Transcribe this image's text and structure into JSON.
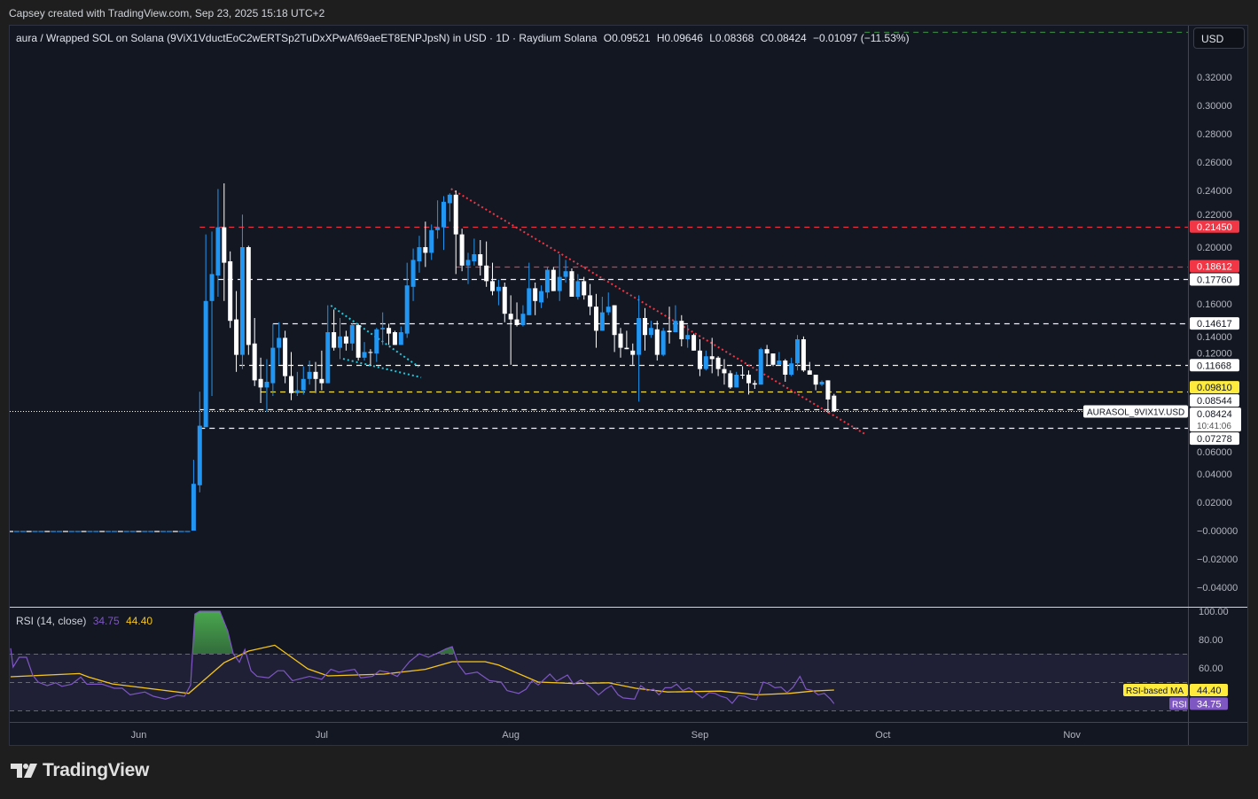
{
  "credit": "Capsey created with TradingView.com, Sep 23, 2025 15:18 UTC+2",
  "legend": {
    "symbol": "aura / Wrapped SOL on Solana (9ViX1VductEoC2wERTSp2TuDxXPwAf69aeET8ENPJpsN) in USD · 1D · Raydium Solana",
    "open": "O0.09521",
    "high": "H0.09646",
    "low": "L0.08368",
    "close": "C0.08424",
    "change": "−0.01097 (−11.53%)"
  },
  "currency_button": "USD",
  "rsi_legend": {
    "title": "RSI (14, close)",
    "rsi_value": "34.75",
    "ma_value": "44.40"
  },
  "rsi_labels": {
    "ma_name": "RSI-based MA",
    "ma_value": "44.40",
    "rsi_name": "RSI",
    "rsi_value": "34.75"
  },
  "symbol_tag": "AURASOL_9VIX1V.USD",
  "countdown": "10:41:06",
  "logo_text": "TradingView",
  "colors": {
    "up": "#2196f3",
    "down": "#ffffff",
    "red": "#f23645",
    "yellow": "#ffeb3b",
    "rsi": "#7e57c2",
    "ma": "#f5c518",
    "cyan": "#26c6da",
    "green": "#4caf50"
  },
  "chart_data": {
    "type": "candlestick",
    "interval": "1D",
    "ylim": [
      -0.05,
      0.36
    ],
    "price_ticks": [
      "0.32000",
      "0.30000",
      "0.28000",
      "0.26000",
      "0.24000",
      "0.22000",
      "0.20000",
      "0.16000",
      "0.14000",
      "0.12000",
      "0.06000",
      "0.04000",
      "0.02000",
      "−0.00000",
      "−0.02000",
      "−0.04000"
    ],
    "time_axis": [
      {
        "label": "Jun",
        "day": 21
      },
      {
        "label": "Jul",
        "day": 51
      },
      {
        "label": "Aug",
        "day": 82
      },
      {
        "label": "Sep",
        "day": 113
      },
      {
        "label": "Oct",
        "day": 143
      },
      {
        "label": "Nov",
        "day": 174
      }
    ],
    "flat_prefix": {
      "days": 30,
      "price": 0.0
    },
    "candles_ohlc": [
      [
        0.0,
        0.05,
        0.0,
        0.033
      ],
      [
        0.032,
        0.098,
        0.027,
        0.074
      ],
      [
        0.073,
        0.209,
        0.073,
        0.162
      ],
      [
        0.162,
        0.211,
        0.095,
        0.181
      ],
      [
        0.18,
        0.241,
        0.165,
        0.214
      ],
      [
        0.214,
        0.245,
        0.162,
        0.189
      ],
      [
        0.19,
        0.197,
        0.143,
        0.148
      ],
      [
        0.149,
        0.169,
        0.112,
        0.124
      ],
      [
        0.124,
        0.223,
        0.114,
        0.2
      ],
      [
        0.2,
        0.201,
        0.124,
        0.131
      ],
      [
        0.132,
        0.15,
        0.102,
        0.106
      ],
      [
        0.107,
        0.122,
        0.09,
        0.101
      ],
      [
        0.101,
        0.121,
        0.084,
        0.105
      ],
      [
        0.104,
        0.146,
        0.095,
        0.129
      ],
      [
        0.129,
        0.147,
        0.117,
        0.136
      ],
      [
        0.136,
        0.141,
        0.104,
        0.109
      ],
      [
        0.109,
        0.126,
        0.092,
        0.097
      ],
      [
        0.097,
        0.112,
        0.095,
        0.099
      ],
      [
        0.099,
        0.116,
        0.096,
        0.107
      ],
      [
        0.107,
        0.12,
        0.103,
        0.112
      ],
      [
        0.112,
        0.119,
        0.097,
        0.107
      ],
      [
        0.107,
        0.127,
        0.099,
        0.104
      ],
      [
        0.104,
        0.159,
        0.104,
        0.14
      ],
      [
        0.14,
        0.156,
        0.127,
        0.129
      ],
      [
        0.129,
        0.15,
        0.121,
        0.137
      ],
      [
        0.137,
        0.141,
        0.127,
        0.132
      ],
      [
        0.132,
        0.146,
        0.127,
        0.145
      ],
      [
        0.145,
        0.146,
        0.12,
        0.122
      ],
      [
        0.122,
        0.133,
        0.12,
        0.126
      ],
      [
        0.126,
        0.128,
        0.117,
        0.1255
      ],
      [
        0.125,
        0.143,
        0.119,
        0.142
      ],
      [
        0.142,
        0.154,
        0.131,
        0.143
      ],
      [
        0.143,
        0.146,
        0.131,
        0.139
      ],
      [
        0.14,
        0.141,
        0.131,
        0.131
      ],
      [
        0.131,
        0.144,
        0.131,
        0.14
      ],
      [
        0.139,
        0.189,
        0.136,
        0.173
      ],
      [
        0.172,
        0.199,
        0.162,
        0.191
      ],
      [
        0.19,
        0.208,
        0.182,
        0.2
      ],
      [
        0.2,
        0.218,
        0.186,
        0.196
      ],
      [
        0.196,
        0.216,
        0.191,
        0.212
      ],
      [
        0.212,
        0.233,
        0.206,
        0.214
      ],
      [
        0.214,
        0.236,
        0.198,
        0.232
      ],
      [
        0.231,
        0.238,
        0.218,
        0.237
      ],
      [
        0.237,
        0.24,
        0.181,
        0.209
      ],
      [
        0.209,
        0.213,
        0.183,
        0.187
      ],
      [
        0.187,
        0.196,
        0.174,
        0.191
      ],
      [
        0.19,
        0.206,
        0.187,
        0.195
      ],
      [
        0.195,
        0.205,
        0.18,
        0.187
      ],
      [
        0.187,
        0.204,
        0.172,
        0.176
      ],
      [
        0.176,
        0.189,
        0.166,
        0.169
      ],
      [
        0.169,
        0.177,
        0.159,
        0.172
      ],
      [
        0.172,
        0.175,
        0.147,
        0.153
      ],
      [
        0.153,
        0.166,
        0.117,
        0.149
      ],
      [
        0.149,
        0.161,
        0.144,
        0.145
      ],
      [
        0.145,
        0.159,
        0.144,
        0.153
      ],
      [
        0.152,
        0.189,
        0.152,
        0.171
      ],
      [
        0.171,
        0.175,
        0.152,
        0.162
      ],
      [
        0.161,
        0.173,
        0.157,
        0.169
      ],
      [
        0.168,
        0.186,
        0.164,
        0.184
      ],
      [
        0.184,
        0.186,
        0.169,
        0.169
      ],
      [
        0.169,
        0.195,
        0.162,
        0.179
      ],
      [
        0.179,
        0.191,
        0.175,
        0.183
      ],
      [
        0.183,
        0.185,
        0.165,
        0.165
      ],
      [
        0.165,
        0.181,
        0.163,
        0.176
      ],
      [
        0.176,
        0.179,
        0.163,
        0.166
      ],
      [
        0.166,
        0.174,
        0.152,
        0.158
      ],
      [
        0.158,
        0.167,
        0.129,
        0.141
      ],
      [
        0.141,
        0.165,
        0.141,
        0.154
      ],
      [
        0.154,
        0.168,
        0.152,
        0.158
      ],
      [
        0.159,
        0.159,
        0.126,
        0.138
      ],
      [
        0.139,
        0.143,
        0.122,
        0.129
      ],
      [
        0.129,
        0.141,
        0.128,
        0.128
      ],
      [
        0.127,
        0.132,
        0.117,
        0.124
      ],
      [
        0.124,
        0.166,
        0.091,
        0.15
      ],
      [
        0.15,
        0.157,
        0.127,
        0.138
      ],
      [
        0.138,
        0.148,
        0.136,
        0.143
      ],
      [
        0.142,
        0.148,
        0.12,
        0.124
      ],
      [
        0.124,
        0.143,
        0.123,
        0.141
      ],
      [
        0.141,
        0.158,
        0.132,
        0.14
      ],
      [
        0.14,
        0.159,
        0.14,
        0.148
      ],
      [
        0.148,
        0.152,
        0.13,
        0.135
      ],
      [
        0.135,
        0.145,
        0.129,
        0.138
      ],
      [
        0.138,
        0.139,
        0.127,
        0.127
      ],
      [
        0.127,
        0.135,
        0.109,
        0.114
      ],
      [
        0.114,
        0.127,
        0.113,
        0.123
      ],
      [
        0.123,
        0.136,
        0.111,
        0.121
      ],
      [
        0.122,
        0.123,
        0.109,
        0.114
      ],
      [
        0.114,
        0.121,
        0.103,
        0.111
      ],
      [
        0.111,
        0.113,
        0.1,
        0.101
      ],
      [
        0.101,
        0.112,
        0.101,
        0.11
      ],
      [
        0.11,
        0.116,
        0.107,
        0.1095
      ],
      [
        0.11,
        0.113,
        0.096,
        0.104
      ],
      [
        0.104,
        0.106,
        0.1,
        0.103
      ],
      [
        0.103,
        0.129,
        0.103,
        0.128
      ],
      [
        0.128,
        0.131,
        0.116,
        0.125
      ],
      [
        0.125,
        0.125,
        0.116,
        0.117
      ],
      [
        0.117,
        0.126,
        0.117,
        0.12
      ],
      [
        0.12,
        0.121,
        0.105,
        0.11
      ],
      [
        0.11,
        0.122,
        0.109,
        0.118
      ],
      [
        0.118,
        0.138,
        0.113,
        0.135
      ],
      [
        0.135,
        0.137,
        0.112,
        0.113
      ],
      [
        0.113,
        0.119,
        0.11,
        0.11
      ],
      [
        0.11,
        0.11,
        0.099,
        0.103
      ],
      [
        0.103,
        0.106,
        0.102,
        0.105
      ],
      [
        0.106,
        0.106,
        0.083,
        0.0925
      ],
      [
        0.09521,
        0.09646,
        0.08368,
        0.08424
      ]
    ],
    "levels": [
      {
        "price": 0.2145,
        "label": "0.21450",
        "color": "red",
        "start_day": 31
      },
      {
        "price": 0.18612,
        "label": "0.18612",
        "color": "red",
        "start_day": 73
      },
      {
        "price": 0.1776,
        "label": "0.17760",
        "color": "white",
        "start_day": 34
      },
      {
        "price": 0.14617,
        "label": "0.14617",
        "color": "white",
        "start_day": 43
      },
      {
        "price": 0.11668,
        "label": "0.11668",
        "color": "white",
        "start_day": 37.5
      },
      {
        "price": 0.0981,
        "label": "0.09810",
        "color": "yellow",
        "start_day": 41
      },
      {
        "price": 0.08544,
        "label": "0.08544",
        "color": "white",
        "start_day": 31
      },
      {
        "price": 0.07278,
        "label": "0.07278",
        "color": "white",
        "start_day": 31
      },
      {
        "price": 0.3519,
        "label": "",
        "color": "green",
        "start_day": 140
      }
    ],
    "last_price": {
      "price": 0.08424,
      "label": "0.08424"
    },
    "trendlines": [
      {
        "color": "red",
        "from": [
          72.2,
          0.2412
        ],
        "to": [
          140,
          0.0683
        ]
      },
      {
        "color": "cyan",
        "from": [
          52.5,
          0.1588
        ],
        "to": [
          66.9,
          0.1156
        ]
      },
      {
        "color": "cyan",
        "from": [
          54.5,
          0.1212
        ],
        "to": [
          67.3,
          0.1081
        ]
      }
    ],
    "rsi": {
      "ylim": [
        0,
        100
      ],
      "ticks": [
        "100.00",
        "80.00",
        "60.00"
      ],
      "bands": [
        70,
        50,
        30
      ],
      "rsi_points": [
        [
          0,
          73.9
        ],
        [
          0.4,
          60.6
        ],
        [
          1.4,
          67.5
        ],
        [
          2.6,
          67.5
        ],
        [
          3.6,
          55
        ],
        [
          4.5,
          50
        ],
        [
          6,
          47.5
        ],
        [
          7.4,
          49.5
        ],
        [
          8.4,
          47
        ],
        [
          10,
          48.5
        ],
        [
          11.5,
          53.5
        ],
        [
          12.5,
          48.5
        ],
        [
          15,
          48.5
        ],
        [
          17,
          45.6
        ],
        [
          18.3,
          45.6
        ],
        [
          19.6,
          41
        ],
        [
          22,
          43
        ],
        [
          23.4,
          40
        ],
        [
          25.4,
          38
        ],
        [
          27.3,
          40.6
        ],
        [
          28.5,
          40
        ],
        [
          29.5,
          48
        ],
        [
          30.2,
          98
        ],
        [
          31,
          100
        ],
        [
          34.3,
          100
        ],
        [
          35.6,
          86
        ],
        [
          36.5,
          70
        ],
        [
          37.5,
          64
        ],
        [
          38.4,
          73
        ],
        [
          39.4,
          58
        ],
        [
          40.4,
          54
        ],
        [
          42.3,
          53
        ],
        [
          43.8,
          58
        ],
        [
          44.8,
          58
        ],
        [
          46.2,
          51
        ],
        [
          49,
          54
        ],
        [
          51,
          52
        ],
        [
          52.5,
          59
        ],
        [
          53.8,
          57
        ],
        [
          55,
          58
        ],
        [
          56.4,
          59
        ],
        [
          57.4,
          53
        ],
        [
          59.3,
          54
        ],
        [
          60.5,
          58
        ],
        [
          61.8,
          57
        ],
        [
          63.4,
          54
        ],
        [
          65.4,
          64.5
        ],
        [
          67,
          70
        ],
        [
          68.5,
          67.5
        ],
        [
          70,
          70.5
        ],
        [
          71.4,
          73.5
        ],
        [
          72.4,
          75
        ],
        [
          73.4,
          62.5
        ],
        [
          74.6,
          55.6
        ],
        [
          76.5,
          57
        ],
        [
          78.5,
          51
        ],
        [
          80.4,
          50
        ],
        [
          81.4,
          44
        ],
        [
          83.3,
          42
        ],
        [
          84.5,
          45
        ],
        [
          85.5,
          51
        ],
        [
          86.5,
          48
        ],
        [
          88.4,
          55.6
        ],
        [
          89.5,
          50.6
        ],
        [
          91.3,
          55
        ],
        [
          92.3,
          48.5
        ],
        [
          93.5,
          51.5
        ],
        [
          95.2,
          46
        ],
        [
          96.4,
          41
        ],
        [
          97.5,
          45
        ],
        [
          98.5,
          47.5
        ],
        [
          99.6,
          41
        ],
        [
          100.4,
          38.8
        ],
        [
          102.3,
          38
        ],
        [
          103.3,
          47.5
        ],
        [
          104.4,
          44
        ],
        [
          105.4,
          45
        ],
        [
          106.3,
          41
        ],
        [
          107.3,
          46
        ],
        [
          108.3,
          46
        ],
        [
          109.2,
          48.5
        ],
        [
          110.2,
          44
        ],
        [
          111.2,
          46
        ],
        [
          113.4,
          38.8
        ],
        [
          114.5,
          42.5
        ],
        [
          115.5,
          42
        ],
        [
          116.4,
          40
        ],
        [
          117.4,
          38.8
        ],
        [
          118.3,
          35
        ],
        [
          119.3,
          40.5
        ],
        [
          120.3,
          40
        ],
        [
          121.4,
          38
        ],
        [
          122.3,
          37.6
        ],
        [
          123.4,
          50
        ],
        [
          124.3,
          48.7
        ],
        [
          125.3,
          46
        ],
        [
          126.3,
          46.5
        ],
        [
          127.3,
          42.5
        ],
        [
          128.3,
          46.5
        ],
        [
          129.4,
          54
        ],
        [
          130.4,
          45
        ],
        [
          131.5,
          44
        ],
        [
          132.4,
          41
        ],
        [
          133.4,
          42
        ],
        [
          134.4,
          38
        ],
        [
          135,
          34.75
        ]
      ],
      "ma_points": [
        [
          0,
          53.75
        ],
        [
          11.3,
          56
        ],
        [
          12.8,
          53.5
        ],
        [
          16.7,
          48.7
        ],
        [
          29.2,
          42
        ],
        [
          35,
          63.7
        ],
        [
          39,
          71.9
        ],
        [
          43.3,
          76
        ],
        [
          48.7,
          59.4
        ],
        [
          52,
          54.4
        ],
        [
          61.2,
          55.6
        ],
        [
          68,
          59
        ],
        [
          72.4,
          64.4
        ],
        [
          77.8,
          64.4
        ],
        [
          80,
          62
        ],
        [
          86.5,
          50
        ],
        [
          92.3,
          49
        ],
        [
          98,
          49.5
        ],
        [
          102.5,
          45.6
        ],
        [
          107.7,
          43
        ],
        [
          116.4,
          43.6
        ],
        [
          122.3,
          41
        ],
        [
          127.6,
          42
        ],
        [
          131.5,
          43.6
        ],
        [
          135,
          44.4
        ]
      ]
    }
  }
}
